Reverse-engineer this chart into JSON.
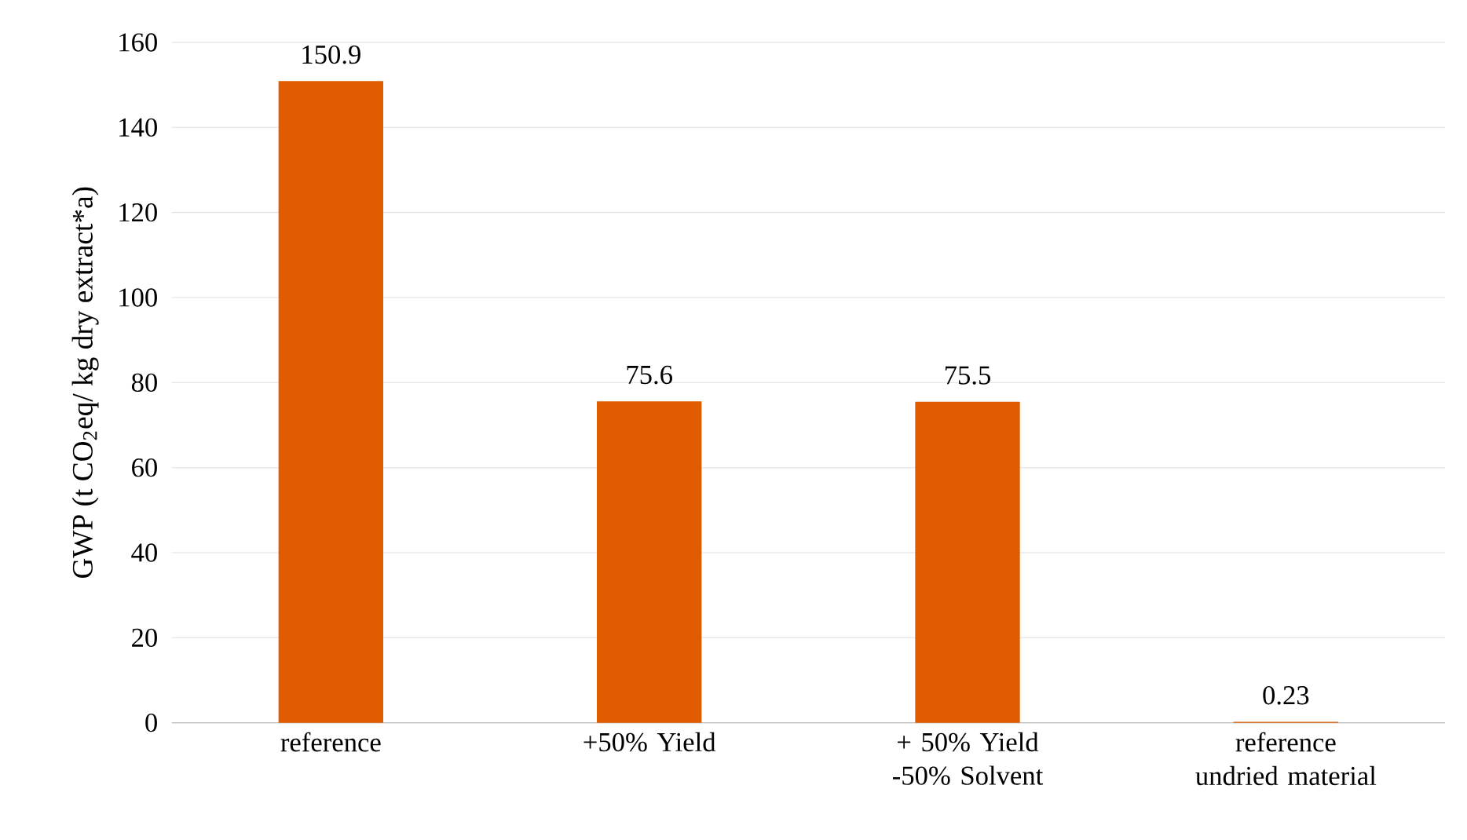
{
  "chart_data": {
    "type": "bar",
    "ylabel": "GWP (t CO$_{2}$eq/ kg dry extract*a)",
    "categories": [
      "reference",
      "+50% Yield",
      "+ 50% Yield -50% Solvent",
      "reference undried material"
    ],
    "values": [
      150.9,
      75.6,
      75.5,
      0.23
    ],
    "color": "#e05a00",
    "ylim": [
      0,
      160
    ],
    "yticks": [
      0,
      20,
      40,
      60,
      80,
      100,
      120,
      140,
      160
    ],
    "grid": "y",
    "data_labels": true
  }
}
